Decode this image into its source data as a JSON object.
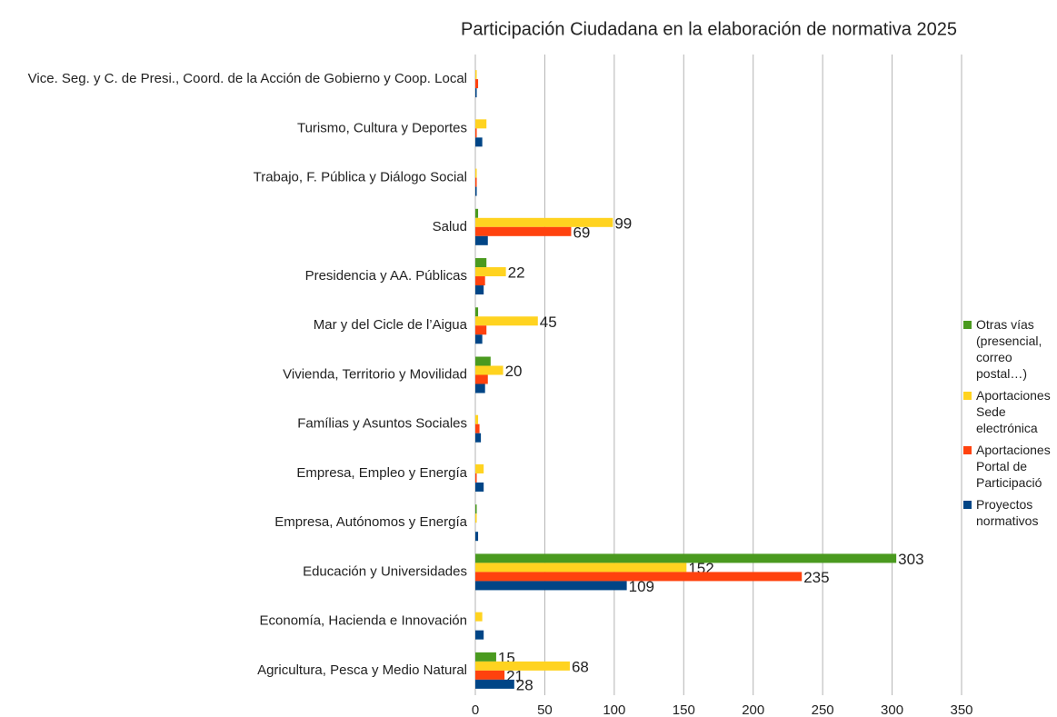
{
  "chart_data": {
    "type": "bar",
    "orientation": "horizontal",
    "title": "Participación Ciudadana en la elaboración de normativa 2025",
    "categories": [
      "Vice. Seg. y C. de Presi., Coord. de la Acción de Gobierno y Coop. Local",
      "Turismo, Cultura y Deportes",
      "Trabajo, F. Pública y Diálogo Social",
      "Salud",
      "Presidencia y AA. Públicas",
      "Mar y del Cicle de l’Aigua",
      "Vivienda, Territorio y Movilidad",
      "Famílias y Asuntos Sociales",
      "Empresa, Empleo y Energía",
      "Empresa, Autónomos y Energía",
      "Educación y Universidades",
      "Economía, Hacienda e Innovación",
      "Agricultura, Pesca y Medio Natural"
    ],
    "series": [
      {
        "name": "Otras vías (presencial, correo postal…)",
        "color": "#4a9a1f",
        "values": [
          0,
          0,
          0,
          2,
          8,
          2,
          11,
          0,
          0,
          1,
          303,
          0,
          15
        ],
        "value_labels": [
          null,
          null,
          null,
          null,
          null,
          null,
          null,
          null,
          null,
          null,
          "303",
          null,
          "15"
        ]
      },
      {
        "name": "Aportaciones Sede electrónica",
        "color": "#ffd320",
        "values": [
          1,
          8,
          1,
          99,
          22,
          45,
          20,
          2,
          6,
          1,
          152,
          5,
          68
        ],
        "value_labels": [
          null,
          null,
          null,
          "99",
          "22",
          "45",
          "20",
          null,
          null,
          null,
          "152",
          null,
          "68"
        ]
      },
      {
        "name": "Aportaciones Portal de Participació",
        "color": "#ff420e",
        "values": [
          2,
          1,
          1,
          69,
          7,
          8,
          9,
          3,
          1,
          0,
          235,
          0,
          21
        ],
        "value_labels": [
          null,
          null,
          null,
          "69",
          null,
          null,
          null,
          null,
          null,
          null,
          "235",
          null,
          "21"
        ]
      },
      {
        "name": "Proyectos normativos",
        "color": "#004586",
        "values": [
          1,
          5,
          1,
          9,
          6,
          5,
          7,
          4,
          6,
          2,
          109,
          6,
          28
        ],
        "value_labels": [
          null,
          null,
          null,
          null,
          null,
          null,
          null,
          null,
          null,
          null,
          "109",
          null,
          "28"
        ]
      }
    ],
    "xlim": [
      0,
      350
    ],
    "xticks": [
      0,
      50,
      100,
      150,
      200,
      250,
      300,
      350
    ],
    "grid": true
  }
}
